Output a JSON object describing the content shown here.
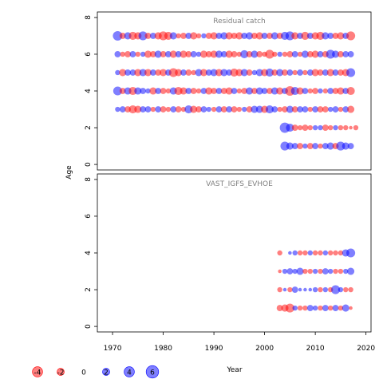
{
  "chart_data": {
    "type": "scatter",
    "xlabel": "Year",
    "ylabel": "Age",
    "xlim": [
      1967,
      2021
    ],
    "xticks": [
      1970,
      1980,
      1990,
      2000,
      2010,
      2020
    ],
    "yticks": [
      0,
      2,
      4,
      6,
      8
    ],
    "colors": {
      "positive": "#0000ff",
      "negative": "#ff0000",
      "alpha": 0.5
    },
    "legend": {
      "placement": "bottom-left",
      "entries": [
        {
          "label": "-4",
          "value": -4
        },
        {
          "label": "-2",
          "value": -2
        },
        {
          "label": "0",
          "value": 0
        },
        {
          "label": "2",
          "value": 2
        },
        {
          "label": "4",
          "value": 4
        },
        {
          "label": "6",
          "value": 6
        }
      ]
    },
    "panels": [
      {
        "title": "Residual catch",
        "ylim": [
          -0.3,
          8.3
        ],
        "ages": [
          {
            "age": 7,
            "years_start": 1971,
            "residuals": [
              3.5,
              -1.5,
              2,
              -2.5,
              -2,
              3,
              -1.5,
              1.5,
              -2,
              -3,
              -2.5,
              2,
              -1,
              -1.5,
              1.5,
              -2,
              -1,
              1,
              -1.5,
              -2,
              1.5,
              2,
              -2,
              -1.5,
              -2,
              1.5,
              2,
              -1.5,
              -2,
              1.5,
              -1.5,
              2,
              -1.5,
              2.5,
              3,
              -2,
              1.5,
              -2.5,
              1.5,
              -2,
              -2.5,
              2,
              1.5,
              -1.5,
              -2,
              1.5,
              -3
            ]
          },
          {
            "age": 6,
            "years_start": 1971,
            "residuals": [
              1.5,
              -1,
              -1.5,
              1.5,
              -1,
              1,
              -2,
              -1.5,
              2,
              -1.5,
              1.5,
              -2,
              1.5,
              -2,
              -1.5,
              1.5,
              1,
              -2,
              -1.5,
              -2,
              2,
              1.5,
              -2,
              -1.5,
              -1,
              2.5,
              -1.5,
              2,
              -1.5,
              -1,
              -3,
              -1,
              1,
              -1,
              -1.5,
              1.5,
              -1,
              2,
              -1.5,
              -2,
              1.5,
              -1.5,
              3,
              2,
              -1.5,
              1.5,
              1.5
            ]
          },
          {
            "age": 5,
            "years_start": 1971,
            "residuals": [
              1,
              -2,
              1.5,
              1.5,
              -2,
              2,
              -2,
              1.5,
              -1.5,
              -2,
              1.5,
              -3,
              -2,
              1.5,
              -1.5,
              -1,
              2,
              -2,
              1.5,
              2,
              -2,
              2,
              1.5,
              -2.5,
              -2,
              2,
              -1.5,
              1,
              2,
              -2,
              2.5,
              -1.5,
              2,
              -1.5,
              1.5,
              -1,
              1.5,
              -1,
              1.5,
              -2,
              -1.5,
              1.5,
              -2,
              1.5,
              -1.5,
              -2,
              3
            ]
          },
          {
            "age": 4,
            "years_start": 1971,
            "residuals": [
              3,
              -1.5,
              2,
              -2.5,
              2,
              1.5,
              1,
              -2,
              1.5,
              -1.5,
              -1,
              2,
              -2.5,
              -2,
              1.5,
              -1.5,
              -1,
              1.5,
              -2,
              -1.5,
              1.5,
              -1.5,
              -2,
              1.5,
              -1,
              -1.5,
              2,
              -1.5,
              2,
              1.5,
              -1.5,
              2,
              -2,
              1.5,
              -3.5,
              2.5,
              -2,
              1.5,
              -1,
              -1.5,
              1,
              -1,
              1.5,
              -1.5,
              -2,
              1.5,
              -2.5
            ]
          },
          {
            "age": 3,
            "years_start": 1971,
            "residuals": [
              1,
              1.5,
              -1.5,
              -2.5,
              -2,
              1.5,
              1.5,
              -1,
              1.5,
              -1.5,
              -1,
              1.5,
              -1.5,
              -1,
              2.5,
              -2,
              -1.5,
              1.5,
              1,
              -1,
              1.5,
              -1.5,
              1.5,
              -1.5,
              -1,
              1,
              -1.5,
              2,
              2,
              -2,
              2.5,
              1.5,
              -1,
              -1.5,
              2,
              -1.5,
              1.5,
              1.5,
              -1,
              1.5,
              -1.5,
              -1.5,
              1,
              1.5,
              -1,
              1.5,
              -2
            ]
          },
          {
            "age": 2,
            "years_start": 2004,
            "residuals": [
              4,
              2.5,
              -1.5,
              -1,
              -1.5,
              -1,
              1,
              1,
              -1.5,
              -1,
              1,
              -1,
              -1,
              -0.5,
              -1
            ]
          },
          {
            "age": 1,
            "years_start": 2004,
            "residuals": [
              3,
              2,
              1.5,
              -1.5,
              1,
              -1.5,
              1.5,
              -1,
              1.5,
              2,
              -1.5,
              3,
              2,
              1.5
            ]
          }
        ]
      },
      {
        "title": "VAST_IGFS_EVHOE",
        "ylim": [
          -0.3,
          8.3
        ],
        "ages": [
          {
            "age": 4,
            "years_start": 2003,
            "residuals": [
              -1,
              0,
              0.5,
              1,
              -1,
              -1,
              1,
              -1,
              -1,
              1,
              -1,
              -1,
              -1,
              2,
              3
            ]
          },
          {
            "age": 3,
            "years_start": 2003,
            "residuals": [
              -0.5,
              1,
              1.5,
              1,
              2,
              -1,
              -1,
              1,
              -1,
              1.5,
              1,
              -1,
              -1,
              1,
              2
            ]
          },
          {
            "age": 2,
            "years_start": 2003,
            "residuals": [
              -1,
              0.5,
              -1,
              1.5,
              0.5,
              0.5,
              0.5,
              1,
              -1,
              1,
              -1,
              3,
              1,
              -1,
              -1
            ]
          },
          {
            "age": 1,
            "years_start": 2003,
            "residuals": [
              -1.5,
              -2,
              -3,
              1,
              -1,
              -1,
              1.5,
              1,
              -1,
              1.5,
              -1,
              1.5,
              -1,
              2,
              -0.5
            ]
          }
        ]
      }
    ]
  }
}
